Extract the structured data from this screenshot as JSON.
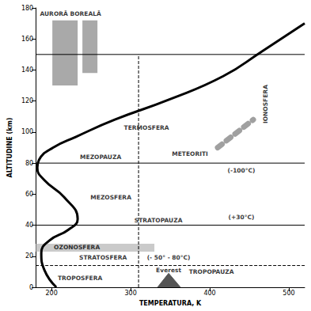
{
  "chart_data": {
    "type": "line",
    "x_label": "TEMPERATURA, K",
    "y_label": "ALTITUDINE (km)",
    "xlim": [
      180,
      520
    ],
    "xticks": [
      200,
      300,
      400,
      500
    ],
    "ylim": [
      0,
      180
    ],
    "yticks": [
      0,
      20,
      40,
      60,
      80,
      100,
      120,
      140,
      160,
      180
    ],
    "grid": false,
    "color": "#000000",
    "x": [
      206,
      191,
      187,
      197,
      221,
      233,
      216,
      191,
      182,
      184,
      202,
      231,
      280,
      349,
      417,
      466,
      520
    ],
    "values": [
      0,
      11,
      22,
      30,
      37,
      44,
      58,
      69,
      77,
      82,
      90,
      97,
      108,
      121,
      136,
      152,
      170
    ],
    "boundaries": [
      {
        "altitude": 150,
        "line_style": "solid"
      },
      {
        "altitude": 80,
        "line_style": "solid"
      },
      {
        "altitude": 40,
        "line_style": "solid"
      },
      {
        "altitude": 14,
        "line_style": "dashed"
      }
    ],
    "reference_line": {
      "x": 310,
      "altitude": [
        0,
        150
      ],
      "line_style": "dashed"
    },
    "regions": [
      {
        "x": [
          180,
          330
        ],
        "altitude": [
          23,
          28
        ],
        "color": "#b8b8b8"
      },
      {
        "x": [
          201,
          233
        ],
        "altitude": [
          130,
          172
        ],
        "color": "#8c8c8c"
      },
      {
        "x": [
          239,
          258
        ],
        "altitude": [
          138,
          172
        ],
        "color": "#8c8c8c"
      }
    ],
    "meteor_band": {
      "x": [
        410,
        455
      ],
      "altitude": [
        90,
        108
      ],
      "color": "#a0a0a0"
    },
    "mountain": {
      "x": [
        334,
        348,
        363
      ],
      "altitude": [
        0,
        9,
        0
      ],
      "color": "#555555"
    },
    "annotations": [
      {
        "text": "AURORĂ BOREALĂ",
        "x": 224,
        "y": 176
      },
      {
        "text": "TERMOSFERA",
        "x": 320,
        "y": 103
      },
      {
        "text": "IONOSFERA",
        "x": 470,
        "y": 118,
        "orientation": "vertical"
      },
      {
        "text": "METEORITI",
        "x": 375,
        "y": 86
      },
      {
        "text": "MEZOPAUZA",
        "x": 262,
        "y": 84
      },
      {
        "text": "(-100°C)",
        "x": 440,
        "y": 75
      },
      {
        "text": "MEZOSFERA",
        "x": 275,
        "y": 58
      },
      {
        "text": "(+30°C)",
        "x": 440,
        "y": 45
      },
      {
        "text": "STRATOPAUZA",
        "x": 335,
        "y": 43
      },
      {
        "text": "OZONOSFERA",
        "x": 232,
        "y": 25.5
      },
      {
        "text": "STRATOSFERA",
        "x": 265,
        "y": 19
      },
      {
        "text": "(- 50° - 80°C)",
        "x": 348,
        "y": 19
      },
      {
        "text": "TROPOPAUZA",
        "x": 402,
        "y": 10
      },
      {
        "text": "TROPOSFERA",
        "x": 236,
        "y": 6
      },
      {
        "text": "Everest",
        "x": 348,
        "y": 11
      }
    ]
  }
}
